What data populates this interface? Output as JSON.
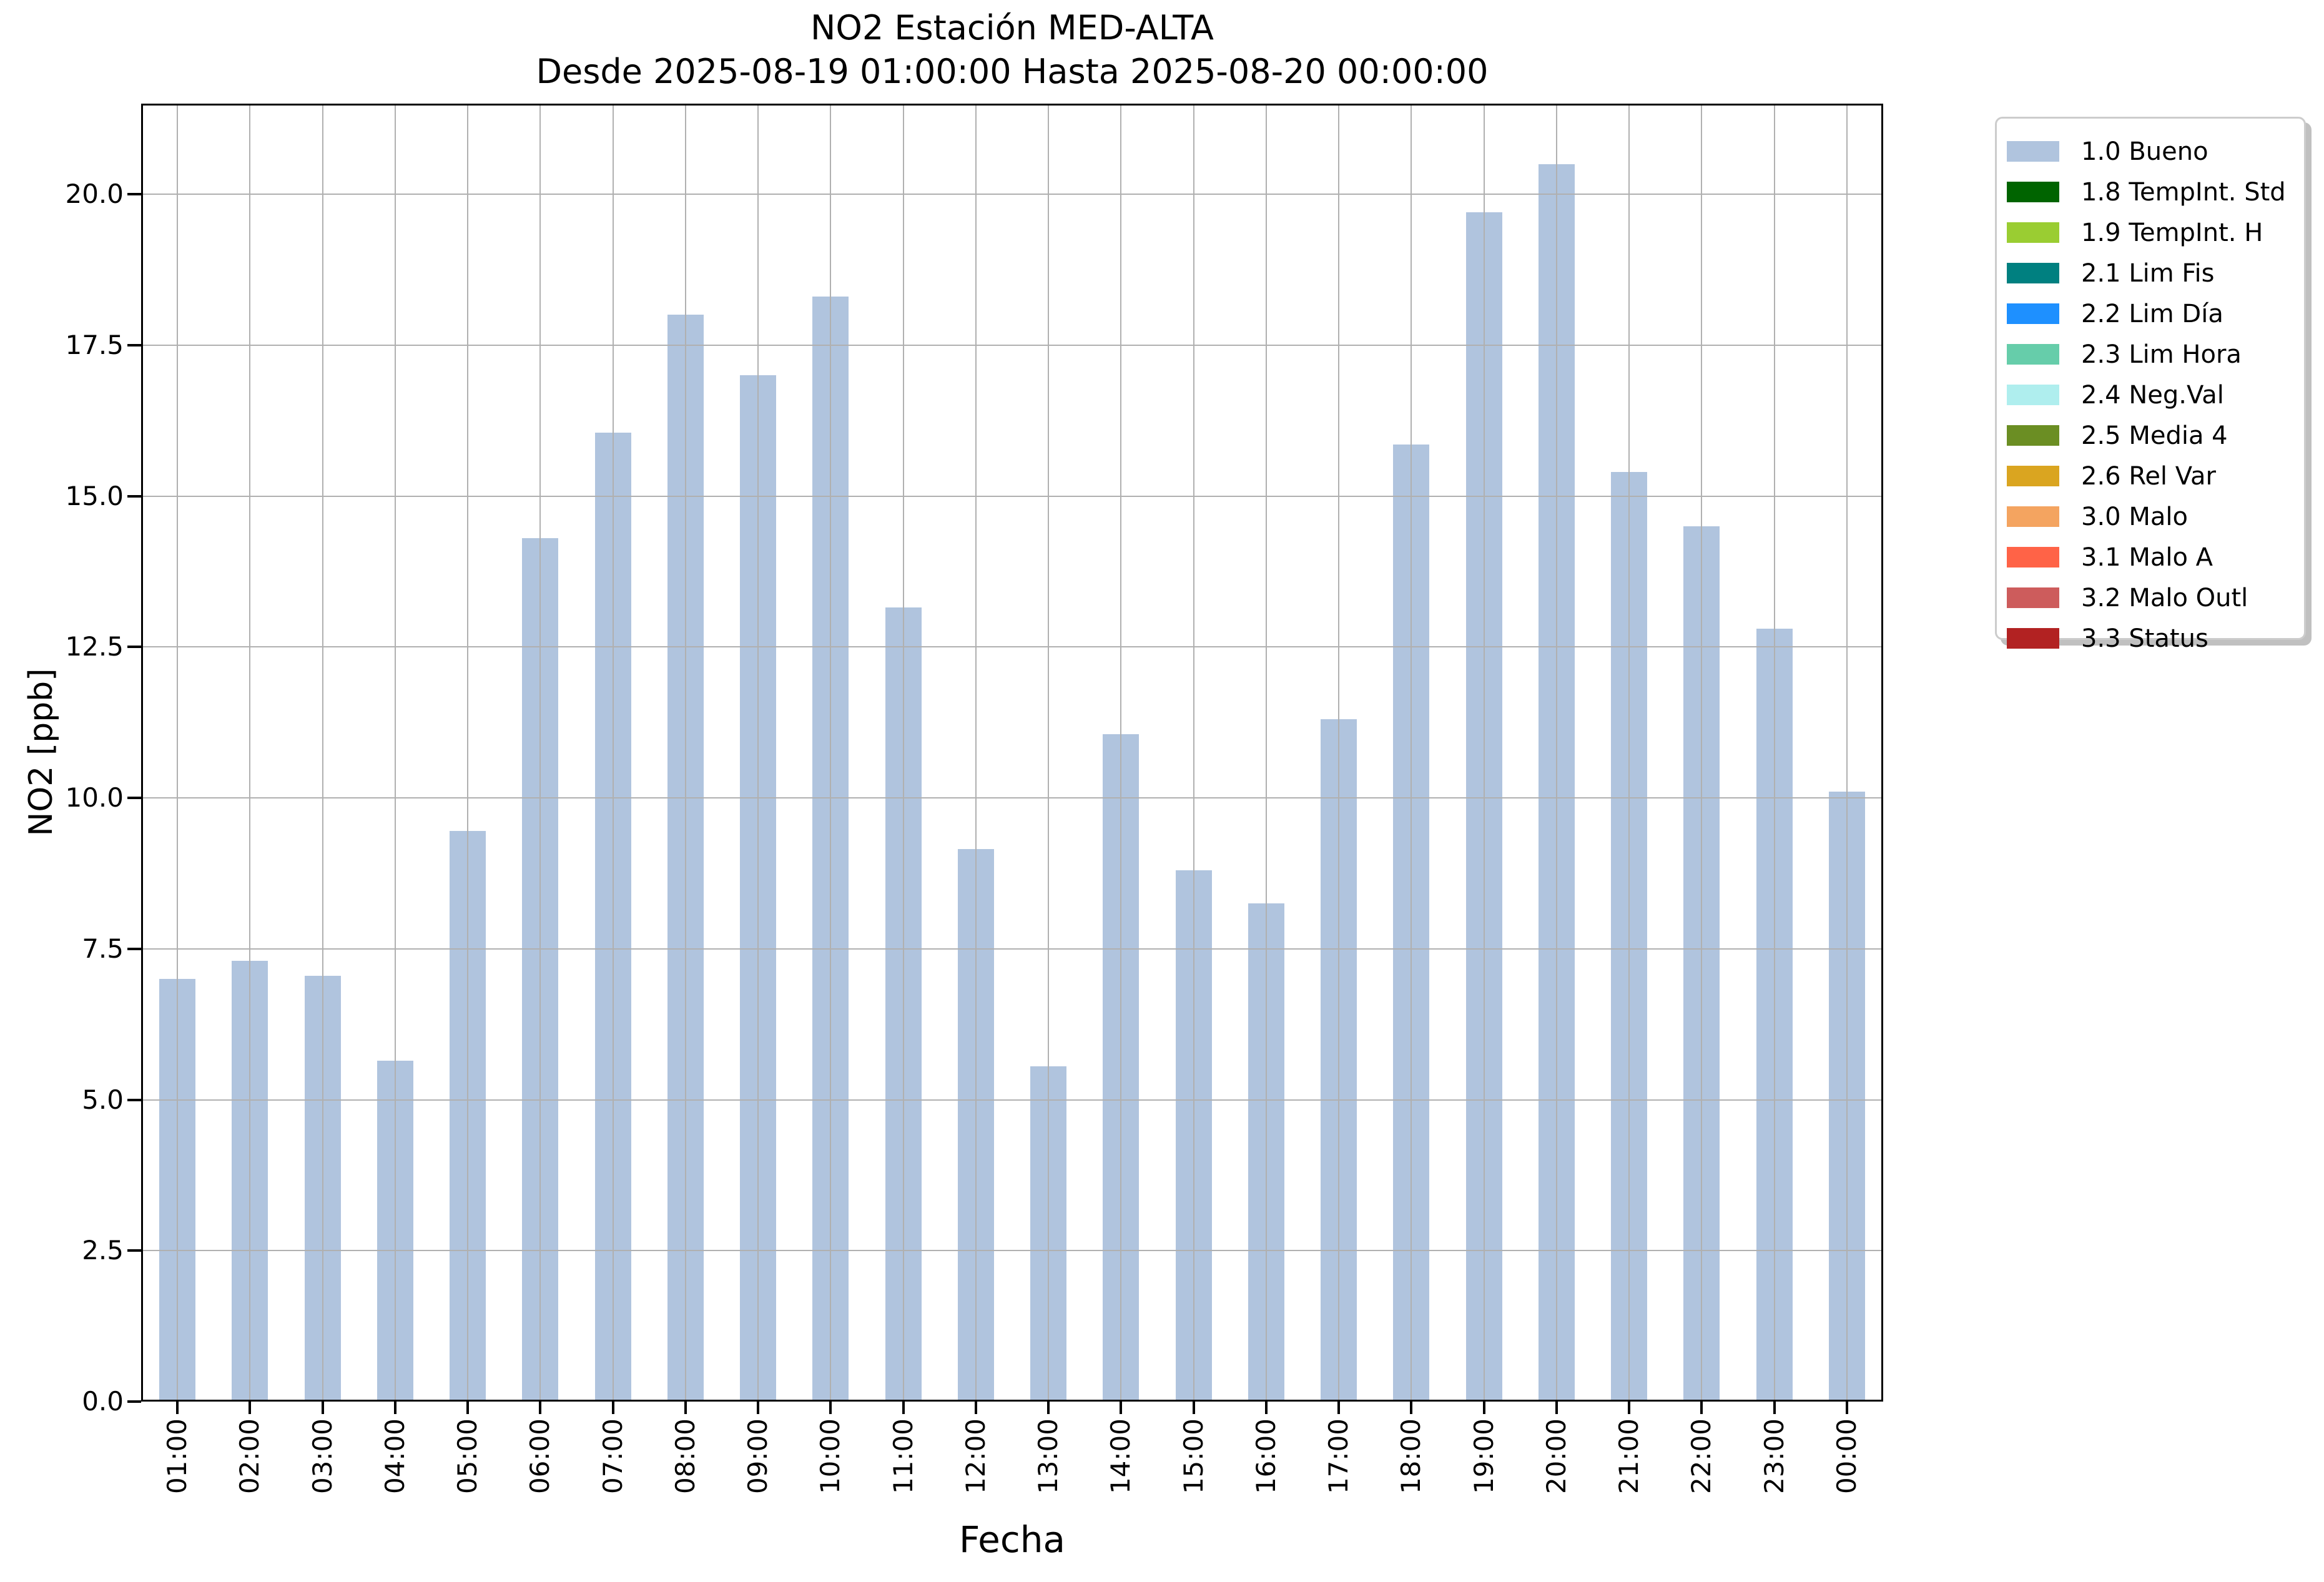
{
  "title": {
    "line1": "NO2 Estación MED-ALTA",
    "line2": "Desde 2025-08-19 01:00:00 Hasta 2025-08-20 00:00:00"
  },
  "chart_data": {
    "type": "bar",
    "title": "NO2 Estación MED-ALTA",
    "subtitle": "Desde 2025-08-19 01:00:00 Hasta 2025-08-20 00:00:00",
    "xlabel": "Fecha",
    "ylabel": "NO2 [ppb]",
    "categories": [
      "01:00",
      "02:00",
      "03:00",
      "04:00",
      "05:00",
      "06:00",
      "07:00",
      "08:00",
      "09:00",
      "10:00",
      "11:00",
      "12:00",
      "13:00",
      "14:00",
      "15:00",
      "16:00",
      "17:00",
      "18:00",
      "19:00",
      "20:00",
      "21:00",
      "22:00",
      "23:00",
      "00:00"
    ],
    "values": [
      7.0,
      7.3,
      7.05,
      5.65,
      9.45,
      14.3,
      16.05,
      18.0,
      17.0,
      18.3,
      13.15,
      9.15,
      5.55,
      11.05,
      8.8,
      8.25,
      11.3,
      15.85,
      19.7,
      20.5,
      15.4,
      14.5,
      12.8,
      10.1
    ],
    "series_name": "1.0 Bueno",
    "bar_color": "#b0c4de",
    "ylim": [
      0,
      21.5
    ],
    "yticks": [
      0.0,
      2.5,
      5.0,
      7.5,
      10.0,
      12.5,
      15.0,
      17.5,
      20.0
    ],
    "grid": true,
    "grid_color": "#b0b0b0",
    "legend_position": "outside-right"
  },
  "legend": {
    "items": [
      {
        "label": "1.0 Bueno",
        "color": "#b0c4de"
      },
      {
        "label": "1.8 TempInt. Std",
        "color": "#006400"
      },
      {
        "label": "1.9 TempInt. H",
        "color": "#9acd32"
      },
      {
        "label": "2.1 Lim Fis",
        "color": "#008080"
      },
      {
        "label": "2.2 Lim Día",
        "color": "#1e90ff"
      },
      {
        "label": "2.3 Lim Hora",
        "color": "#66cdaa"
      },
      {
        "label": "2.4 Neg.Val",
        "color": "#afeeee"
      },
      {
        "label": "2.5 Media 4",
        "color": "#6b8e23"
      },
      {
        "label": "2.6 Rel Var",
        "color": "#daa520"
      },
      {
        "label": "3.0 Malo",
        "color": "#f4a460"
      },
      {
        "label": "3.1 Malo A",
        "color": "#ff6347"
      },
      {
        "label": "3.2 Malo Outl",
        "color": "#cd5c5c"
      },
      {
        "label": "3.3 Status",
        "color": "#b22222"
      }
    ]
  }
}
